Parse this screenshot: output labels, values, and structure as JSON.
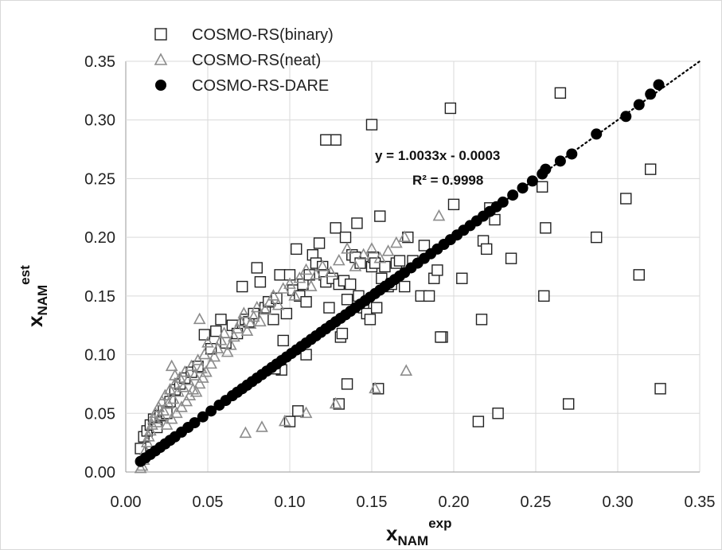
{
  "chart_data": {
    "type": "scatter",
    "title": "",
    "xlabel": {
      "main": "x",
      "sub": "NAM",
      "sup": "exp"
    },
    "ylabel": {
      "main": "x",
      "sub": "NAM",
      "sup": "est"
    },
    "xlim": [
      0,
      0.35
    ],
    "ylim": [
      0,
      0.35
    ],
    "xticks": [
      "0.00",
      "0.05",
      "0.10",
      "0.15",
      "0.20",
      "0.25",
      "0.30",
      "0.35"
    ],
    "yticks": [
      "0.00",
      "0.05",
      "0.10",
      "0.15",
      "0.20",
      "0.25",
      "0.30",
      "0.35"
    ],
    "grid": true,
    "legend_position": "top-left",
    "trendline": {
      "series": "COSMO-RS-DARE",
      "slope": 1.0033,
      "intercept": -0.0003,
      "style": "dotted",
      "equation_label": "y = 1.0033x - 0.0003",
      "r2_label": "R² = 0.9998"
    },
    "series": [
      {
        "name": "COSMO-RS(binary)",
        "marker": "open-square",
        "color": "#222222",
        "x": [
          0.009,
          0.011,
          0.013,
          0.015,
          0.017,
          0.019,
          0.021,
          0.023,
          0.025,
          0.027,
          0.03,
          0.033,
          0.036,
          0.04,
          0.044,
          0.048,
          0.052,
          0.055,
          0.058,
          0.061,
          0.065,
          0.068,
          0.071,
          0.073,
          0.075,
          0.078,
          0.08,
          0.082,
          0.085,
          0.087,
          0.09,
          0.092,
          0.094,
          0.096,
          0.098,
          0.1,
          0.102,
          0.104,
          0.106,
          0.108,
          0.11,
          0.112,
          0.114,
          0.116,
          0.118,
          0.12,
          0.121,
          0.122,
          0.124,
          0.126,
          0.128,
          0.13,
          0.131,
          0.132,
          0.133,
          0.134,
          0.135,
          0.137,
          0.138,
          0.14,
          0.141,
          0.142,
          0.143,
          0.145,
          0.147,
          0.149,
          0.15,
          0.151,
          0.152,
          0.153,
          0.155,
          0.156,
          0.158,
          0.16,
          0.162,
          0.165,
          0.167,
          0.17,
          0.172,
          0.175,
          0.18,
          0.182,
          0.185,
          0.188,
          0.19,
          0.193,
          0.198,
          0.2,
          0.205,
          0.215,
          0.217,
          0.218,
          0.22,
          0.222,
          0.225,
          0.227,
          0.235,
          0.254,
          0.255,
          0.256,
          0.265,
          0.27,
          0.287,
          0.305,
          0.313,
          0.32,
          0.326,
          0.1,
          0.105,
          0.11,
          0.13,
          0.135,
          0.095,
          0.091,
          0.128
        ],
        "y": [
          0.02,
          0.03,
          0.035,
          0.04,
          0.045,
          0.038,
          0.048,
          0.052,
          0.05,
          0.06,
          0.07,
          0.075,
          0.08,
          0.085,
          0.09,
          0.117,
          0.105,
          0.12,
          0.13,
          0.11,
          0.125,
          0.118,
          0.158,
          0.13,
          0.128,
          0.135,
          0.174,
          0.162,
          0.14,
          0.145,
          0.13,
          0.148,
          0.168,
          0.112,
          0.135,
          0.168,
          0.155,
          0.19,
          0.15,
          0.16,
          0.145,
          0.168,
          0.185,
          0.178,
          0.195,
          0.175,
          0.168,
          0.162,
          0.14,
          0.165,
          0.208,
          0.16,
          0.115,
          0.118,
          0.163,
          0.2,
          0.147,
          0.16,
          0.185,
          0.183,
          0.212,
          0.15,
          0.178,
          0.14,
          0.135,
          0.13,
          0.175,
          0.183,
          0.178,
          0.14,
          0.218,
          0.165,
          0.175,
          0.158,
          0.16,
          0.178,
          0.18,
          0.158,
          0.2,
          0.18,
          0.15,
          0.193,
          0.15,
          0.165,
          0.172,
          0.115,
          0.31,
          0.228,
          0.165,
          0.043,
          0.13,
          0.197,
          0.19,
          0.225,
          0.215,
          0.05,
          0.182,
          0.243,
          0.15,
          0.208,
          0.323,
          0.058,
          0.2,
          0.233,
          0.168,
          0.258,
          0.071,
          0.043,
          0.052,
          0.1,
          0.058,
          0.075,
          0.087,
          0.088,
          0.283
        ],
        "extra_points": [
          [
            0.122,
            0.283
          ],
          [
            0.15,
            0.296
          ],
          [
            0.154,
            0.071
          ],
          [
            0.192,
            0.115
          ]
        ]
      },
      {
        "name": "COSMO-RS(neat)",
        "marker": "open-triangle",
        "color": "#8c8c8c",
        "x": [
          0.009,
          0.01,
          0.011,
          0.012,
          0.013,
          0.014,
          0.015,
          0.016,
          0.017,
          0.018,
          0.019,
          0.02,
          0.021,
          0.022,
          0.023,
          0.024,
          0.025,
          0.026,
          0.027,
          0.028,
          0.029,
          0.03,
          0.031,
          0.032,
          0.033,
          0.034,
          0.035,
          0.036,
          0.037,
          0.038,
          0.039,
          0.04,
          0.041,
          0.042,
          0.043,
          0.044,
          0.045,
          0.046,
          0.047,
          0.048,
          0.049,
          0.05,
          0.052,
          0.054,
          0.056,
          0.058,
          0.06,
          0.062,
          0.064,
          0.066,
          0.068,
          0.07,
          0.072,
          0.074,
          0.076,
          0.078,
          0.08,
          0.082,
          0.085,
          0.088,
          0.09,
          0.093,
          0.096,
          0.1,
          0.103,
          0.106,
          0.11,
          0.113,
          0.116,
          0.12,
          0.125,
          0.13,
          0.135,
          0.14,
          0.145,
          0.15,
          0.155,
          0.16,
          0.165,
          0.17,
          0.191,
          0.028,
          0.03,
          0.045,
          0.073,
          0.083,
          0.097,
          0.11,
          0.128,
          0.152,
          0.171
        ],
        "y": [
          0.003,
          0.005,
          0.01,
          0.018,
          0.025,
          0.03,
          0.035,
          0.04,
          0.045,
          0.05,
          0.042,
          0.055,
          0.048,
          0.06,
          0.052,
          0.065,
          0.04,
          0.058,
          0.07,
          0.045,
          0.062,
          0.075,
          0.05,
          0.068,
          0.08,
          0.055,
          0.072,
          0.085,
          0.06,
          0.078,
          0.065,
          0.09,
          0.07,
          0.082,
          0.068,
          0.095,
          0.075,
          0.088,
          0.08,
          0.1,
          0.085,
          0.11,
          0.092,
          0.098,
          0.105,
          0.112,
          0.118,
          0.102,
          0.108,
          0.115,
          0.122,
          0.128,
          0.135,
          0.12,
          0.126,
          0.132,
          0.14,
          0.128,
          0.138,
          0.145,
          0.15,
          0.142,
          0.156,
          0.16,
          0.15,
          0.165,
          0.172,
          0.158,
          0.168,
          0.175,
          0.17,
          0.18,
          0.19,
          0.175,
          0.185,
          0.19,
          0.182,
          0.188,
          0.195,
          0.2,
          0.218,
          0.09,
          0.082,
          0.13,
          0.033,
          0.038,
          0.043,
          0.05,
          0.058,
          0.071,
          0.086
        ]
      },
      {
        "name": "COSMO-RS-DARE",
        "marker": "filled-circle",
        "color": "#000000",
        "x": [
          0.009,
          0.012,
          0.015,
          0.018,
          0.021,
          0.024,
          0.027,
          0.03,
          0.034,
          0.038,
          0.042,
          0.047,
          0.052,
          0.057,
          0.061,
          0.065,
          0.068,
          0.071,
          0.074,
          0.077,
          0.08,
          0.083,
          0.086,
          0.089,
          0.092,
          0.095,
          0.098,
          0.101,
          0.104,
          0.107,
          0.11,
          0.113,
          0.116,
          0.119,
          0.122,
          0.125,
          0.128,
          0.131,
          0.134,
          0.137,
          0.14,
          0.143,
          0.146,
          0.149,
          0.152,
          0.155,
          0.158,
          0.161,
          0.164,
          0.167,
          0.17,
          0.174,
          0.178,
          0.182,
          0.186,
          0.19,
          0.194,
          0.198,
          0.202,
          0.206,
          0.21,
          0.214,
          0.218,
          0.222,
          0.226,
          0.23,
          0.236,
          0.242,
          0.248,
          0.254,
          0.256,
          0.265,
          0.272,
          0.287,
          0.305,
          0.313,
          0.32,
          0.325
        ],
        "y": [
          0.009,
          0.012,
          0.015,
          0.018,
          0.021,
          0.024,
          0.027,
          0.03,
          0.034,
          0.038,
          0.042,
          0.047,
          0.052,
          0.057,
          0.061,
          0.065,
          0.068,
          0.071,
          0.074,
          0.077,
          0.08,
          0.083,
          0.086,
          0.089,
          0.092,
          0.095,
          0.098,
          0.101,
          0.104,
          0.107,
          0.11,
          0.113,
          0.116,
          0.119,
          0.122,
          0.125,
          0.128,
          0.131,
          0.134,
          0.137,
          0.14,
          0.143,
          0.146,
          0.149,
          0.152,
          0.155,
          0.158,
          0.161,
          0.164,
          0.167,
          0.17,
          0.174,
          0.178,
          0.182,
          0.186,
          0.19,
          0.194,
          0.198,
          0.202,
          0.206,
          0.21,
          0.214,
          0.218,
          0.222,
          0.226,
          0.23,
          0.236,
          0.242,
          0.248,
          0.254,
          0.258,
          0.265,
          0.271,
          0.288,
          0.303,
          0.313,
          0.322,
          0.33
        ]
      }
    ]
  }
}
